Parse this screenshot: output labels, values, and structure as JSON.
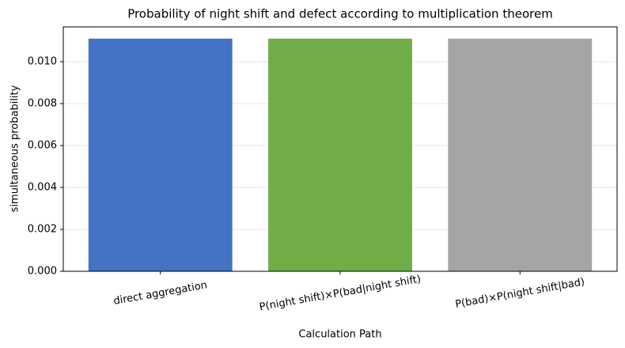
{
  "chart_data": {
    "type": "bar",
    "title": "Probability of night shift and defect according to multiplication theorem",
    "x_label": "Calculation Path",
    "y_label": "simultaneous probability",
    "categories": [
      "direct aggregation",
      "P(night shift)×P(bad|night shift)",
      "P(bad)×P(night shift|bad)"
    ],
    "values": [
      0.0111,
      0.0111,
      0.0111
    ],
    "colors": [
      "#4472c4",
      "#70ad47",
      "#a5a5a5"
    ],
    "ylim": [
      0,
      0.01166
    ],
    "yticks": [
      {
        "value": 0,
        "label": "0.000"
      },
      {
        "value": 0.002,
        "label": "0.002"
      },
      {
        "value": 0.004,
        "label": "0.004"
      },
      {
        "value": 0.006,
        "label": "0.006"
      },
      {
        "value": 0.008,
        "label": "0.008"
      },
      {
        "value": 0.01,
        "label": "0.010"
      }
    ],
    "grid": true
  }
}
